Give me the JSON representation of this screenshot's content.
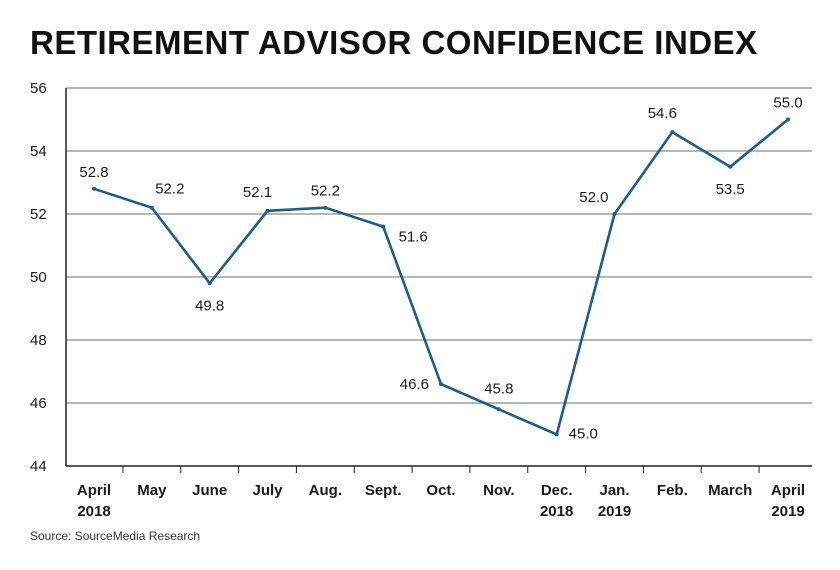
{
  "chart_data": {
    "type": "line",
    "title": "RETIREMENT ADVISOR CONFIDENCE INDEX",
    "categories": [
      [
        "April",
        "2018"
      ],
      [
        "May"
      ],
      [
        "June"
      ],
      [
        "July"
      ],
      [
        "Aug."
      ],
      [
        "Sept."
      ],
      [
        "Oct."
      ],
      [
        "Nov."
      ],
      [
        "Dec.",
        "2018"
      ],
      [
        "Jan.",
        "2019"
      ],
      [
        "Feb."
      ],
      [
        "March"
      ],
      [
        "April",
        "2019"
      ]
    ],
    "series": [
      {
        "name": "Retirement Advisor Confidence Index",
        "values": [
          52.8,
          52.2,
          49.8,
          52.1,
          52.2,
          51.6,
          46.6,
          45.8,
          45.0,
          52.0,
          54.6,
          53.5,
          55.0
        ],
        "labels": [
          "52.8",
          "52.2",
          "49.8",
          "52.1",
          "52.2",
          "51.6",
          "46.6",
          "45.8",
          "45.0",
          "52.0",
          "54.6",
          "53.5",
          "55.0"
        ]
      }
    ],
    "ylim": [
      44,
      56
    ],
    "yticks": [
      44,
      46,
      48,
      50,
      52,
      54,
      56
    ],
    "grid": true,
    "xlabel": "",
    "ylabel": "",
    "source": "Source: SourceMedia Research",
    "colors": {
      "line": "#1f5c8c",
      "grid": "#8a8a8a",
      "axis": "#222222"
    }
  }
}
